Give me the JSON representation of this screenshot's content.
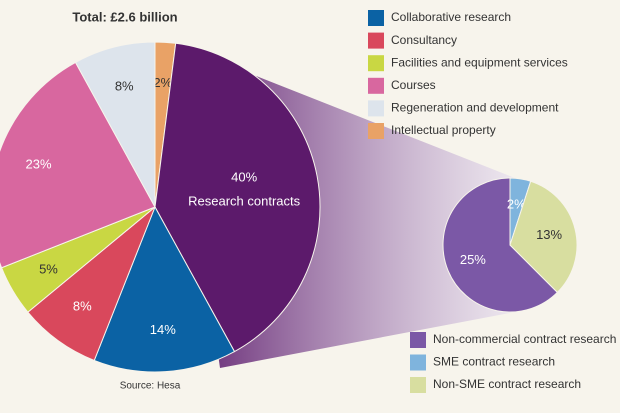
{
  "chart_data": [
    {
      "type": "pie",
      "title": "Total: £2.6 billion",
      "source": "Source: Hesa",
      "categories": [
        "Intellectual property",
        "Research contracts",
        "Collaborative research",
        "Consultancy",
        "Facilities and equipment services",
        "Courses",
        "Regeneration and development"
      ],
      "values": [
        2,
        40,
        14,
        8,
        5,
        23,
        8
      ],
      "value_labels": [
        "2%",
        "40%",
        "14%",
        "8%",
        "5%",
        "23%",
        "8%"
      ],
      "colors": [
        "#e9a266",
        "#5c1a6b",
        "#0b62a4",
        "#d9485c",
        "#c9d743",
        "#d8679f",
        "#dde4ec"
      ],
      "expanded_slice": 1,
      "legend_order": [
        2,
        3,
        4,
        5,
        6,
        0
      ]
    },
    {
      "type": "pie",
      "categories": [
        "Non-commercial contract research",
        "SME contract research",
        "Non-SME contract research"
      ],
      "values": [
        25,
        2,
        13
      ],
      "value_labels": [
        "25%",
        "2%",
        "13%"
      ],
      "colors": [
        "#7b58a6",
        "#7fb4dd",
        "#d8dea0"
      ]
    }
  ]
}
